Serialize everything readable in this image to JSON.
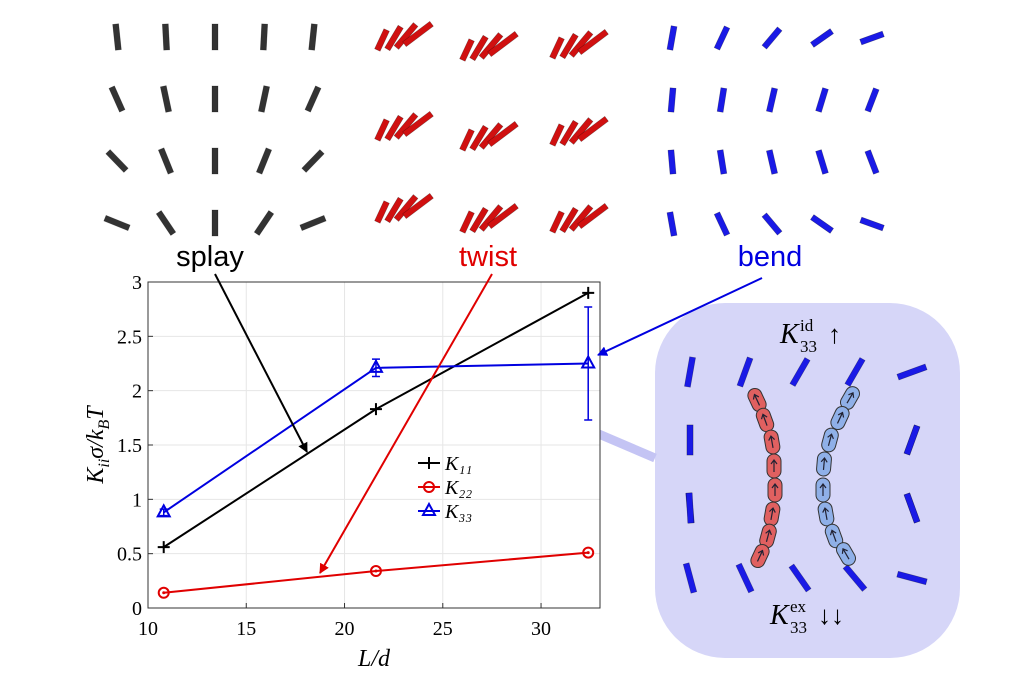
{
  "chart_data": {
    "type": "line",
    "x": [
      10.8,
      21.6,
      32.4
    ],
    "series": [
      {
        "name": "K₁₁",
        "color": "#000000",
        "marker": "plus",
        "values": [
          0.56,
          1.83,
          2.9
        ]
      },
      {
        "name": "K₂₂",
        "color": "#e00000",
        "marker": "circle",
        "values": [
          0.14,
          0.34,
          0.51
        ]
      },
      {
        "name": "K₃₃",
        "color": "#0000e0",
        "marker": "triangle",
        "values": [
          0.88,
          2.21,
          2.25
        ],
        "errors": [
          0.03,
          0.08,
          0.52
        ]
      }
    ],
    "xlim": [
      10,
      33
    ],
    "ylim": [
      0,
      3
    ],
    "xticks": [
      10,
      15,
      20,
      25,
      30
    ],
    "yticks": [
      0,
      0.5,
      1,
      1.5,
      2,
      2.5,
      3
    ],
    "xlabel": "L/d",
    "ylabel": [
      "K",
      "ii",
      "σ/k",
      "B",
      "T"
    ],
    "grid": true
  },
  "annotations": {
    "splay": "splay",
    "twist": "twist",
    "bend": "bend"
  },
  "inset": {
    "top": [
      "K",
      "id",
      "33",
      "↑"
    ],
    "bottom": [
      "K",
      "ex",
      "33",
      "↓↓"
    ]
  }
}
